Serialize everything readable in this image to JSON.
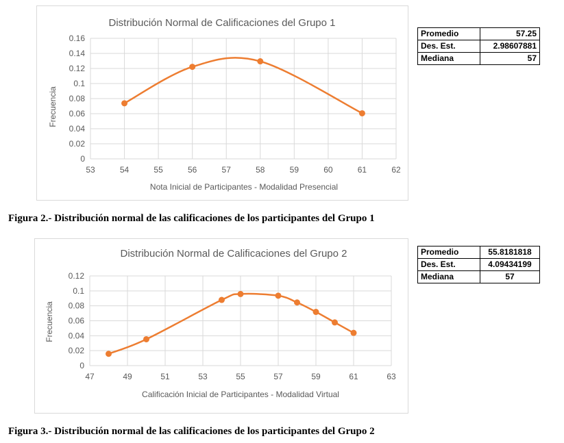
{
  "figures": [
    {
      "caption": "Figura 2.- Distribución normal de las calificaciones de los participantes del Grupo 1",
      "stats": [
        {
          "label": "Promedio",
          "value": "57.25"
        },
        {
          "label": "Des. Est.",
          "value": "2.98607881"
        },
        {
          "label": "Mediana",
          "value": "57"
        }
      ]
    },
    {
      "caption": "Figura 3.- Distribución normal de las calificaciones de los participantes del Grupo 2",
      "stats": [
        {
          "label": "Promedio",
          "value": "55.8181818"
        },
        {
          "label": "Des. Est.",
          "value": "4.09434199"
        },
        {
          "label": "Mediana",
          "value": "57"
        }
      ]
    }
  ],
  "chart_data": [
    {
      "type": "line",
      "title": "Distribución Normal de Calificaciones del Grupo 1",
      "xlabel": "Nota Inicial de Participantes - Modalidad Presencial",
      "ylabel": "Frecuencia",
      "xlim": [
        53,
        62
      ],
      "ylim": [
        0,
        0.16
      ],
      "xticks": [
        "53",
        "54",
        "55",
        "56",
        "57",
        "58",
        "59",
        "60",
        "61",
        "62"
      ],
      "yticks": [
        "0",
        "0.02",
        "0.04",
        "0.06",
        "0.08",
        "0.1",
        "0.12",
        "0.14",
        "0.16"
      ],
      "grid": true,
      "smooth": true,
      "color": "#ed7d31",
      "series": [
        {
          "x": [
            54,
            56,
            58,
            61
          ],
          "y": [
            0.0738,
            0.1222,
            0.1295,
            0.0605
          ]
        }
      ]
    },
    {
      "type": "line",
      "title": "Distribución Normal de Calificaciones del Grupo 2",
      "xlabel": "Calificación Inicial de Participantes - Modalidad Virtual",
      "ylabel": "Frecuencia",
      "xlim": [
        47,
        63
      ],
      "ylim": [
        0,
        0.12
      ],
      "xticks": [
        "47",
        "49",
        "51",
        "53",
        "55",
        "57",
        "59",
        "61",
        "63"
      ],
      "yticks": [
        "0",
        "0.02",
        "0.04",
        "0.06",
        "0.08",
        "0.1",
        "0.12"
      ],
      "grid": true,
      "smooth": true,
      "color": "#ed7d31",
      "series": [
        {
          "x": [
            48,
            50,
            54,
            55,
            57,
            58,
            59,
            60,
            61
          ],
          "y": [
            0.0158,
            0.0353,
            0.0879,
            0.0958,
            0.0936,
            0.0845,
            0.0719,
            0.0578,
            0.0438
          ]
        }
      ]
    }
  ]
}
